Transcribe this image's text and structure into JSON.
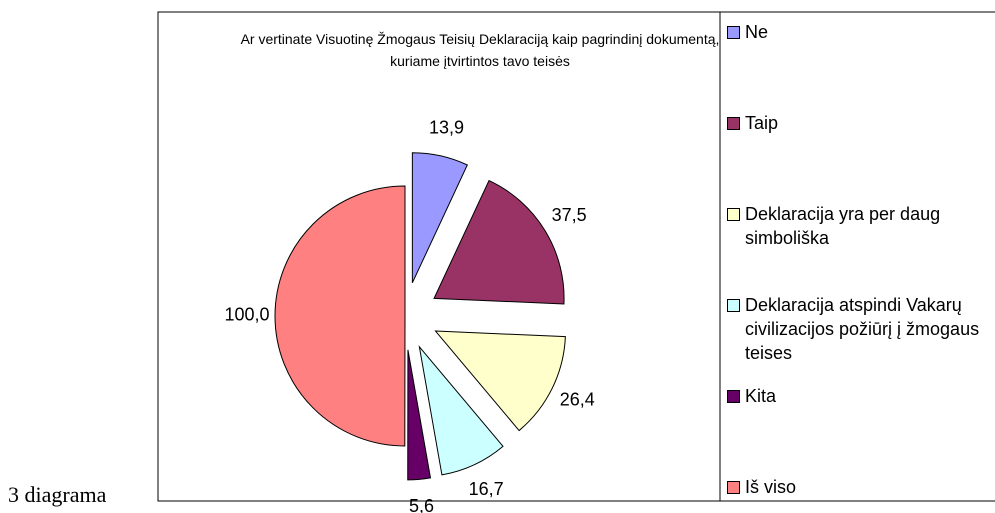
{
  "caption": "3 diagrama",
  "chart_data": {
    "type": "pie",
    "title": "Ar vertinate Visuotinę Žmogaus Teisių Deklaraciją kaip pagrindinį dokumentą, kuriame įtvirtintos tavo teisės",
    "categories": [
      "Ne",
      "Taip",
      "Deklaracija yra per daug simboliška",
      "Deklaracija atspindi Vakarų civilizacijos požiūrį į žmogaus teises",
      "Kita",
      "Iš viso"
    ],
    "values": [
      13.9,
      37.5,
      26.4,
      16.7,
      5.6,
      100.0
    ],
    "value_labels": [
      "13,9",
      "37,5",
      "26,4",
      "16,7",
      "5,6",
      "100,0"
    ],
    "colors": [
      "#9999ff",
      "#993366",
      "#ffffcc",
      "#ccffff",
      "#660066",
      "#ff8080"
    ],
    "legend": "right"
  }
}
